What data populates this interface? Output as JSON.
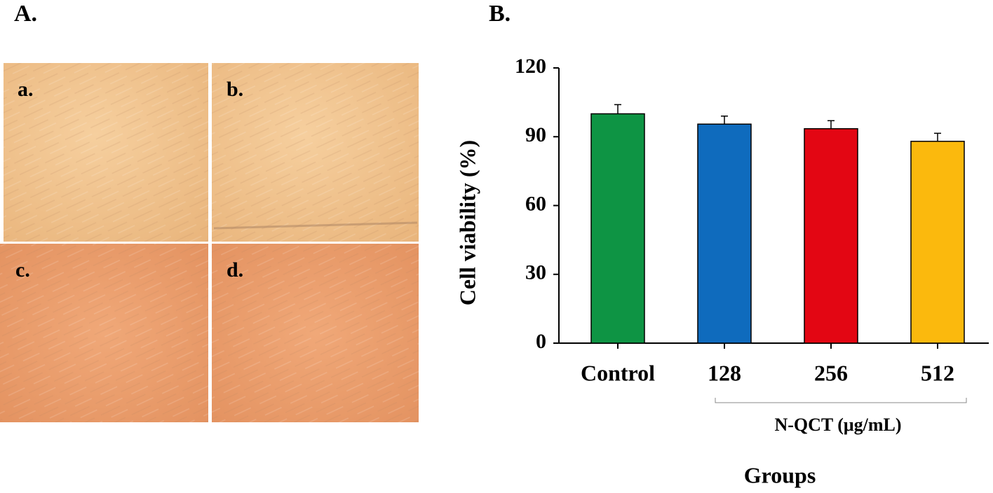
{
  "panel_a": {
    "label": "A.",
    "images": [
      "a.",
      "b.",
      "c.",
      "d."
    ]
  },
  "chart_data": {
    "type": "bar",
    "panel_label": "B.",
    "ylabel": "Cell viability (%)",
    "xlabel": "Groups",
    "group_label": "N-QCT (μg/mL)",
    "categories": [
      "Control",
      "128",
      "256",
      "512"
    ],
    "values": [
      100,
      95.5,
      93.5,
      88
    ],
    "errors": [
      4,
      3.5,
      3.5,
      3.5
    ],
    "colors": [
      "#0e9444",
      "#0f6bbd",
      "#e30613",
      "#fbb90d"
    ],
    "ylim": [
      0,
      120
    ],
    "yticks": [
      0,
      30,
      60,
      90,
      120
    ]
  }
}
